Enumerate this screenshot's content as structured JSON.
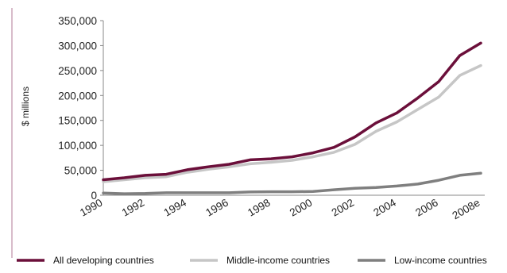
{
  "chart_data": {
    "type": "line",
    "title": "",
    "xlabel": "",
    "ylabel": "$ millions",
    "ylim": [
      0,
      350000
    ],
    "yticks": [
      "0",
      "50,000",
      "100,000",
      "150,000",
      "200,000",
      "250,000",
      "300,000",
      "350,000"
    ],
    "x": [
      "1990",
      "1991",
      "1992",
      "1993",
      "1994",
      "1995",
      "1996",
      "1997",
      "1998",
      "1999",
      "2000",
      "2001",
      "2002",
      "2003",
      "2004",
      "2005",
      "2006",
      "2007",
      "2008e"
    ],
    "xticks": [
      "1990",
      "1992",
      "1994",
      "1996",
      "1998",
      "2000",
      "2002",
      "2004",
      "2006",
      "2008e"
    ],
    "grid": false,
    "legend_position": "bottom",
    "series": [
      {
        "name": "All developing countries",
        "color": "#6b0f3a",
        "values": [
          31000,
          35000,
          40000,
          42000,
          51000,
          57000,
          62000,
          71000,
          73000,
          77000,
          85000,
          96000,
          117000,
          145000,
          165000,
          195000,
          228000,
          280000,
          305000
        ]
      },
      {
        "name": "Middle-income countries",
        "color": "#c6c6c6",
        "values": [
          27000,
          31000,
          35000,
          37000,
          46000,
          52000,
          57000,
          63000,
          66000,
          70000,
          77000,
          86000,
          102000,
          128000,
          147000,
          172000,
          197000,
          240000,
          260000
        ]
      },
      {
        "name": "Low-income countries",
        "color": "#7f7f7f",
        "values": [
          4500,
          3000,
          3500,
          5000,
          5000,
          5000,
          5000,
          6500,
          7000,
          7000,
          7500,
          11000,
          14000,
          15500,
          18500,
          22500,
          30000,
          40000,
          44000
        ]
      }
    ]
  }
}
